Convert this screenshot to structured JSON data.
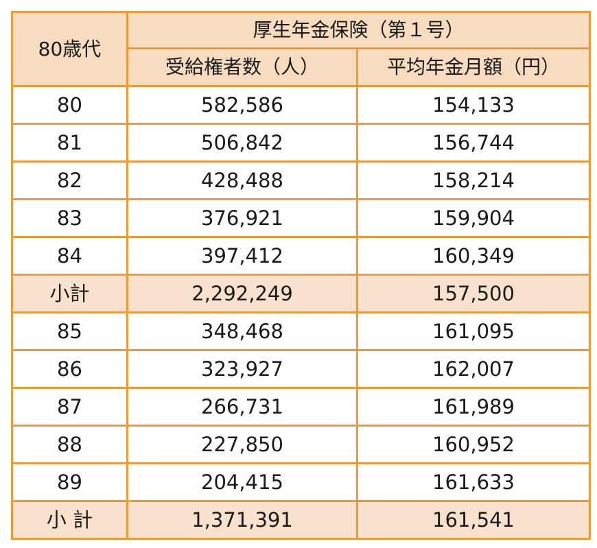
{
  "table": {
    "age_group_header": "80歳代",
    "group_header": "厚生年金保険（第１号）",
    "column_headers": [
      "受給権者数（人）",
      "平均年金月額（円）"
    ],
    "rows": [
      {
        "label": "80",
        "count": "582,586",
        "amount": "154,133",
        "subtotal": false
      },
      {
        "label": "81",
        "count": "506,842",
        "amount": "156,744",
        "subtotal": false
      },
      {
        "label": "82",
        "count": "428,488",
        "amount": "158,214",
        "subtotal": false
      },
      {
        "label": "83",
        "count": "376,921",
        "amount": "159,904",
        "subtotal": false
      },
      {
        "label": "84",
        "count": "397,412",
        "amount": "160,349",
        "subtotal": false
      },
      {
        "label": "小計",
        "count": "2,292,249",
        "amount": "157,500",
        "subtotal": true
      },
      {
        "label": "85",
        "count": "348,468",
        "amount": "161,095",
        "subtotal": false
      },
      {
        "label": "86",
        "count": "323,927",
        "amount": "162,007",
        "subtotal": false
      },
      {
        "label": "87",
        "count": "266,731",
        "amount": "161,989",
        "subtotal": false
      },
      {
        "label": "88",
        "count": "227,850",
        "amount": "160,952",
        "subtotal": false
      },
      {
        "label": "89",
        "count": "204,415",
        "amount": "161,633",
        "subtotal": false
      },
      {
        "label": "小 計",
        "count": "1,371,391",
        "amount": "161,541",
        "subtotal": true
      }
    ]
  },
  "colors": {
    "border": "#ef9a39",
    "header_background": "#f8dcc0",
    "subtotal_background": "#f8e2cd",
    "row_background": "#ffffff"
  }
}
